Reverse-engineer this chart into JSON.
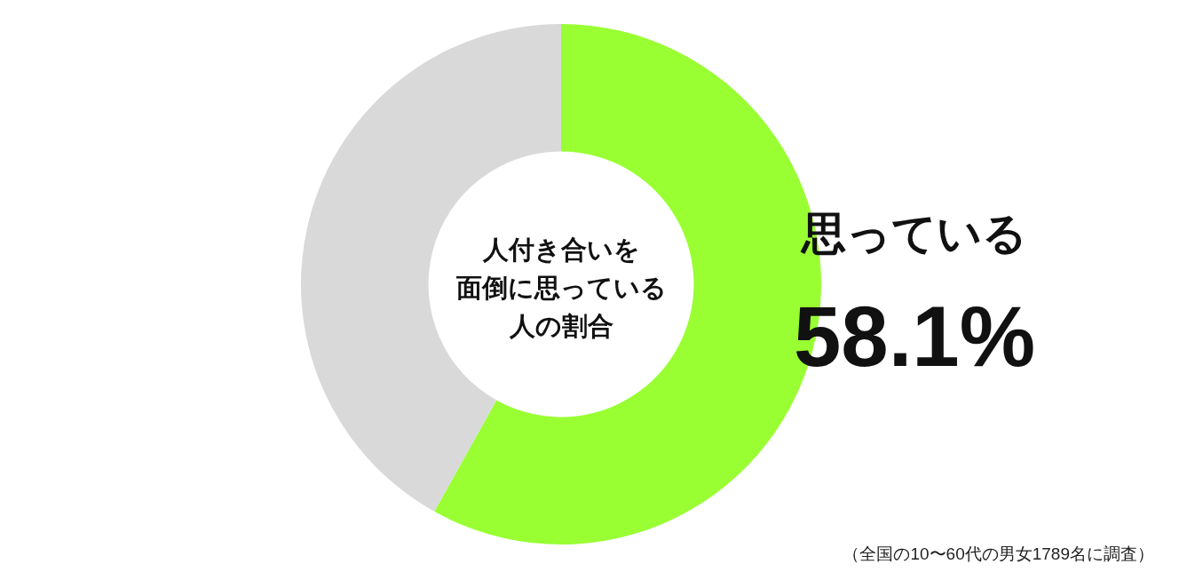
{
  "chart_data": {
    "type": "donut",
    "title": "人付き合いを面倒に思っている人の割合",
    "categories": [
      "思っている",
      null
    ],
    "values": [
      58.1,
      41.9
    ],
    "colors": [
      "#99ff33",
      "#d9d9d9"
    ],
    "value_labels": [
      "58.1%",
      null
    ],
    "annotations": [
      "（全国の10〜60代の男女1789名に調査）"
    ]
  }
}
